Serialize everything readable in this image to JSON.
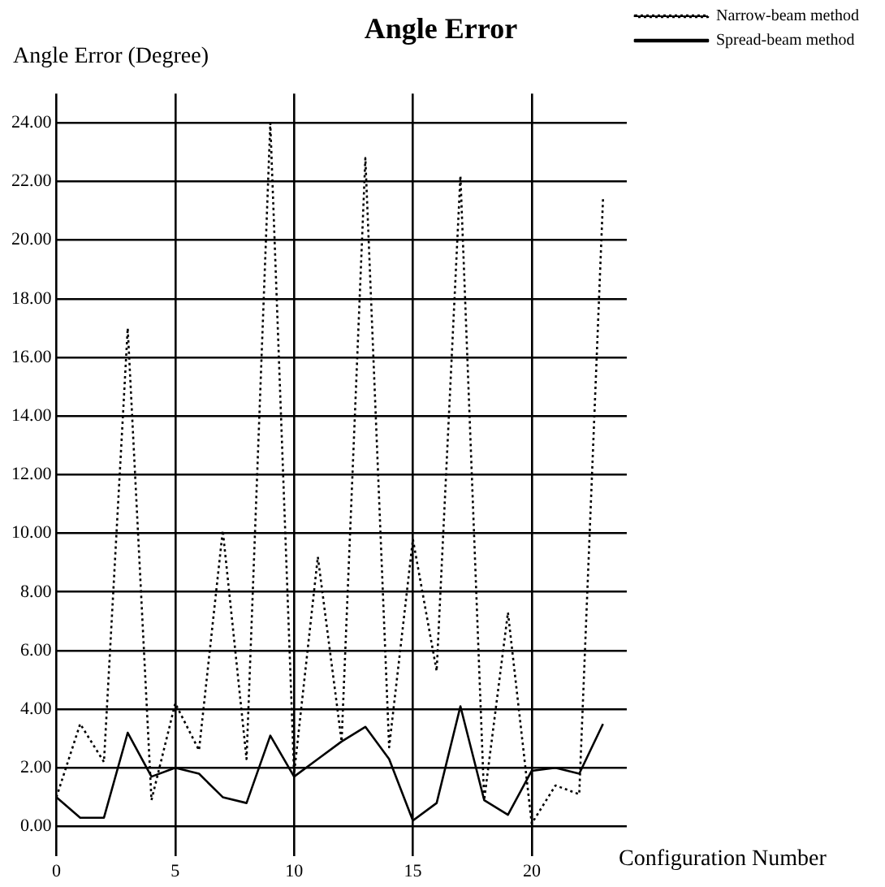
{
  "chart_data": {
    "type": "line",
    "title": "Angle Error",
    "ylabel": "Angle Error (Degree)",
    "xlabel": "Configuration Number",
    "x": [
      0,
      1,
      2,
      3,
      4,
      5,
      6,
      7,
      8,
      9,
      10,
      11,
      12,
      13,
      14,
      15,
      16,
      17,
      18,
      19,
      20,
      21,
      22,
      23
    ],
    "series": [
      {
        "name": "Narrow-beam method",
        "color": "#000000",
        "line_style": "dotted",
        "values": [
          1.0,
          3.5,
          2.2,
          17.0,
          0.9,
          4.2,
          2.6,
          10.1,
          2.3,
          24.0,
          1.8,
          9.2,
          2.9,
          22.8,
          2.7,
          9.8,
          5.3,
          22.2,
          0.9,
          7.3,
          0.1,
          1.4,
          1.1,
          21.4
        ]
      },
      {
        "name": "Spread-beam method",
        "color": "#000000",
        "line_style": "solid",
        "values": [
          1.0,
          0.3,
          0.3,
          3.2,
          1.7,
          2.0,
          1.8,
          1.0,
          0.8,
          3.1,
          1.7,
          2.3,
          2.9,
          3.4,
          2.3,
          0.2,
          0.8,
          4.1,
          0.9,
          0.4,
          1.9,
          2.0,
          1.8,
          3.5
        ]
      }
    ],
    "xlim": [
      0,
      24
    ],
    "xticks": [
      0,
      5,
      10,
      15,
      20
    ],
    "ylim": [
      -1,
      25
    ],
    "yticks": [
      {
        "value": 0,
        "label": "0.00"
      },
      {
        "value": 2,
        "label": "2.00"
      },
      {
        "value": 4,
        "label": "4.00"
      },
      {
        "value": 6,
        "label": "6.00"
      },
      {
        "value": 8,
        "label": "8.00"
      },
      {
        "value": 10,
        "label": "10.00"
      },
      {
        "value": 12,
        "label": "12.00"
      },
      {
        "value": 14,
        "label": "14.00"
      },
      {
        "value": 16,
        "label": "16.00"
      },
      {
        "value": 18,
        "label": "18.00"
      },
      {
        "value": 20,
        "label": "20.00"
      },
      {
        "value": 22,
        "label": "22.00"
      },
      {
        "value": 24,
        "label": "24.00"
      }
    ],
    "grid": true,
    "legend": "top right",
    "marker": "none"
  }
}
